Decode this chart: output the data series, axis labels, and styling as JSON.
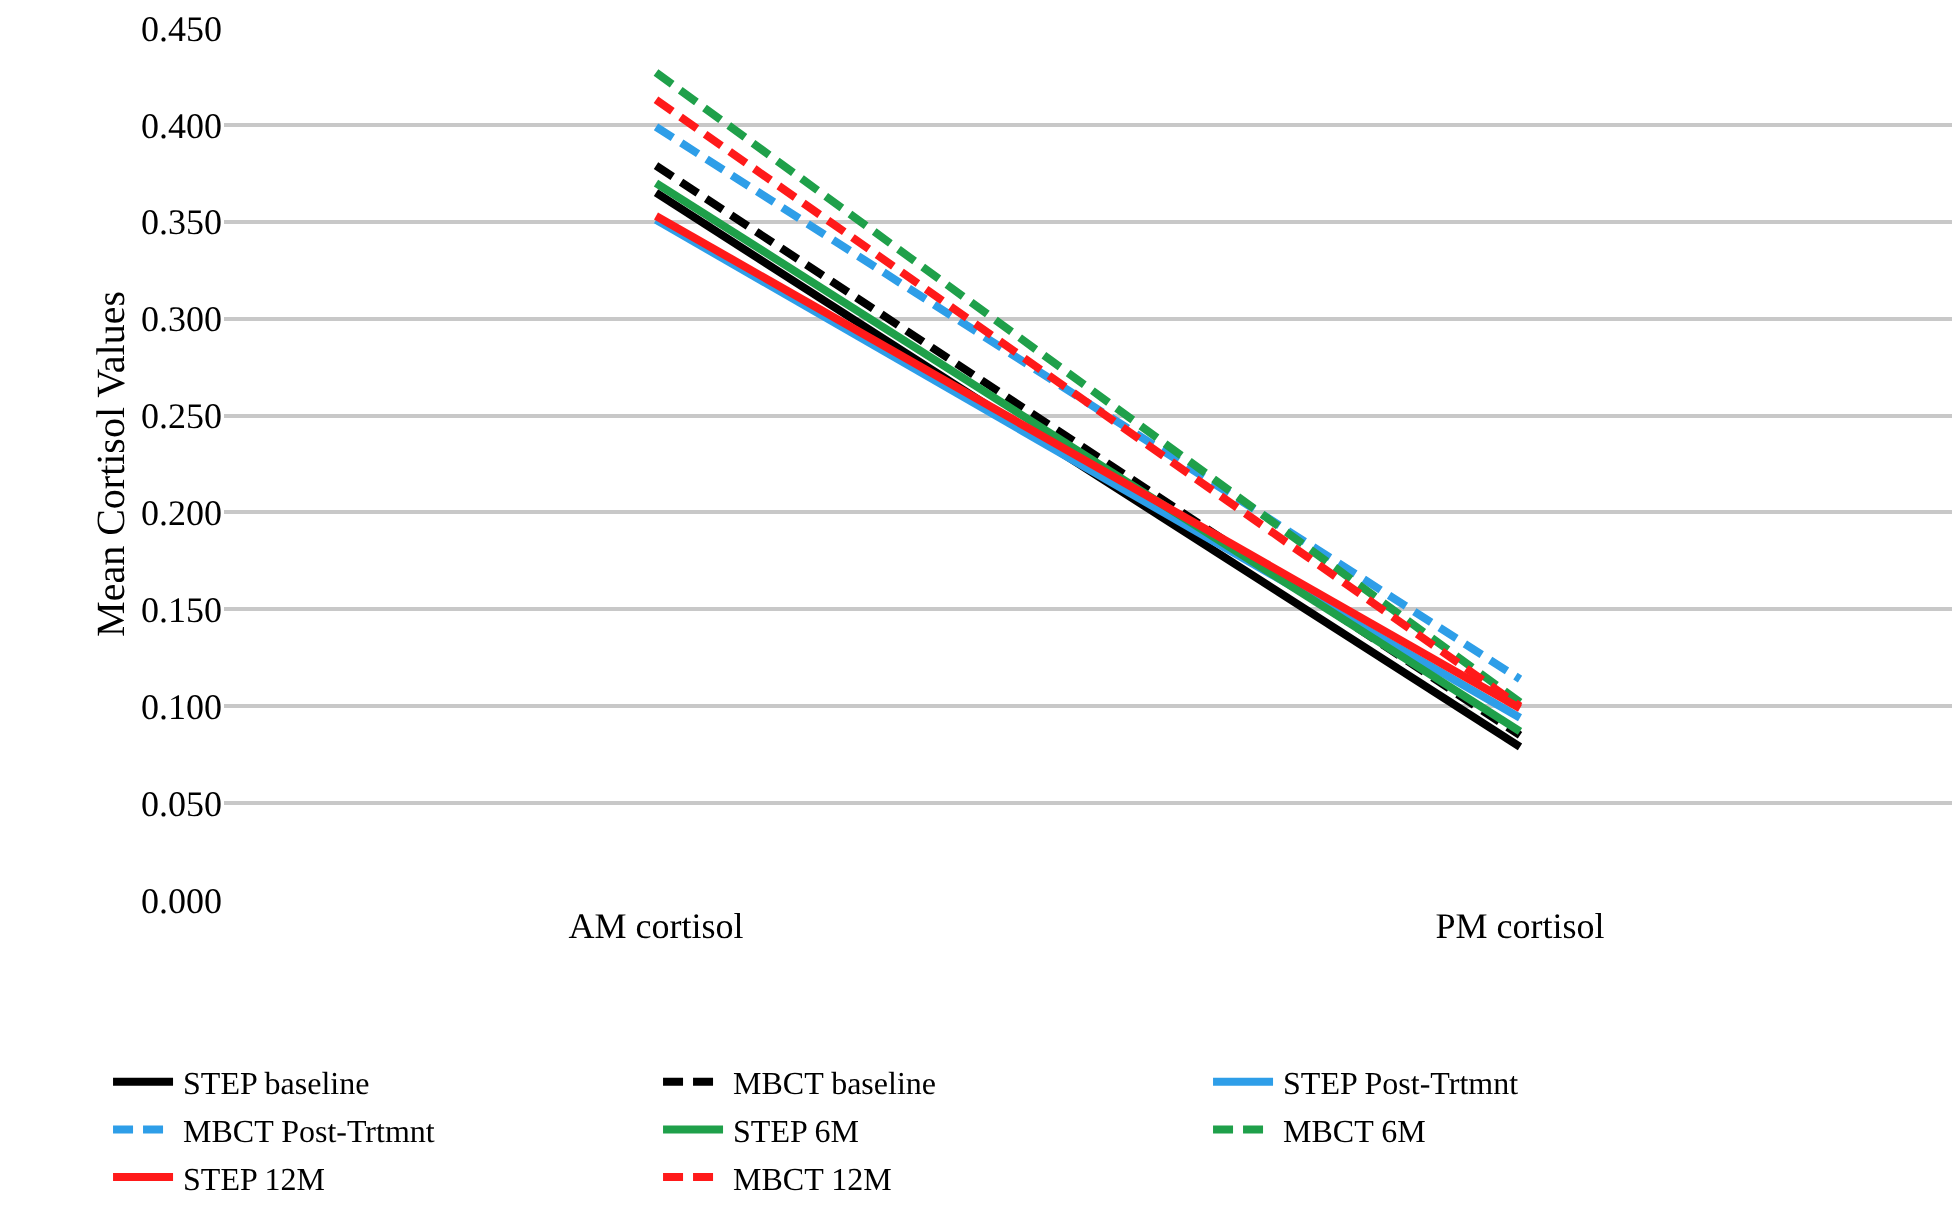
{
  "chart_data": {
    "type": "line",
    "ylabel": "Mean Cortisol Values",
    "categories": [
      "AM cortisol",
      "PM cortisol"
    ],
    "ylim": [
      0,
      0.45
    ],
    "yticks": [
      {
        "value": 0,
        "label": "0.000"
      },
      {
        "value": 0.05,
        "label": "0.050"
      },
      {
        "value": 0.1,
        "label": "0.100"
      },
      {
        "value": 0.15,
        "label": "0.150"
      },
      {
        "value": 0.2,
        "label": "0.200"
      },
      {
        "value": 0.25,
        "label": "0.250"
      },
      {
        "value": 0.3,
        "label": "0.300"
      },
      {
        "value": 0.35,
        "label": "0.350"
      },
      {
        "value": 0.4,
        "label": "0.400"
      },
      {
        "value": 0.45,
        "label": "0.450"
      }
    ],
    "grid": "y",
    "legend": "bottom",
    "marker": "none",
    "series": [
      {
        "name": "STEP baseline",
        "color": "#000000",
        "line_style": "solid",
        "values": [
          0.365,
          0.079
        ]
      },
      {
        "name": "MBCT baseline",
        "color": "#000000",
        "line_style": "dashed",
        "values": [
          0.379,
          0.085
        ]
      },
      {
        "name": "STEP Post-Trtmnt",
        "color": "#2e9ee8",
        "line_style": "solid",
        "values": [
          0.351,
          0.094
        ]
      },
      {
        "name": "MBCT Post-Trtmnt",
        "color": "#2e9ee8",
        "line_style": "dashed",
        "values": [
          0.399,
          0.114
        ]
      },
      {
        "name": "STEP 6M",
        "color": "#1fa04a",
        "line_style": "solid",
        "values": [
          0.37,
          0.087
        ]
      },
      {
        "name": "MBCT 6M",
        "color": "#1fa04a",
        "line_style": "dashed",
        "values": [
          0.427,
          0.102
        ]
      },
      {
        "name": "STEP 12M",
        "color": "#ff1a1a",
        "line_style": "solid",
        "values": [
          0.353,
          0.099
        ]
      },
      {
        "name": "MBCT 12M",
        "color": "#ff1a1a",
        "line_style": "dashed",
        "values": [
          0.413,
          0.1
        ]
      }
    ]
  }
}
